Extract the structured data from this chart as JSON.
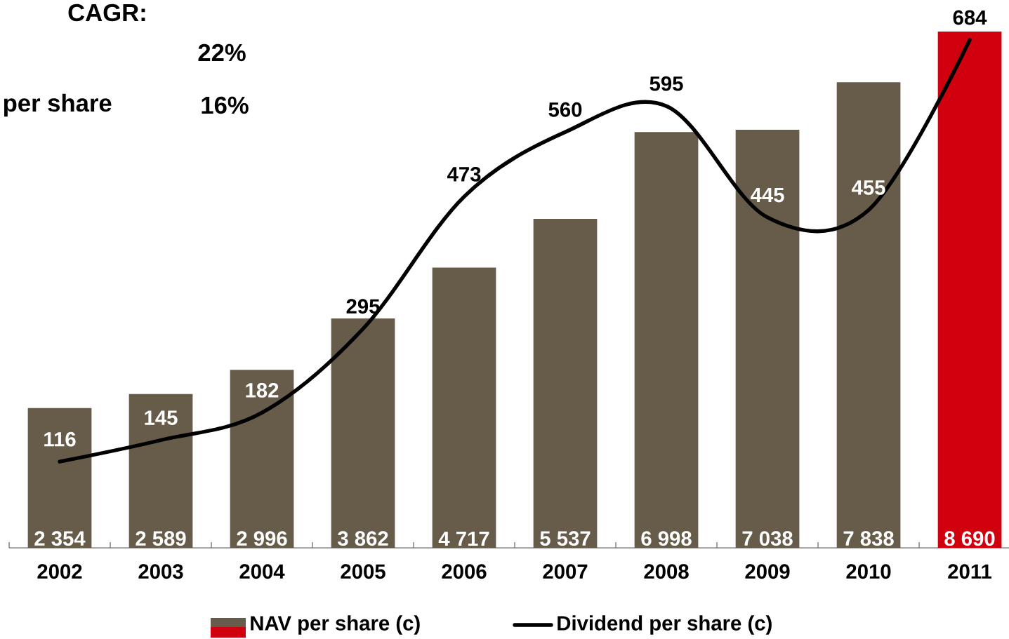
{
  "chart_data": {
    "type": "bar",
    "categories": [
      "2002",
      "2003",
      "2004",
      "2005",
      "2006",
      "2007",
      "2008",
      "2009",
      "2010",
      "2011"
    ],
    "series": [
      {
        "name": "NAV per share (c)",
        "colors": [
          "#675c4a",
          "#675c4a",
          "#675c4a",
          "#675c4a",
          "#675c4a",
          "#675c4a",
          "#675c4a",
          "#675c4a",
          "#675c4a",
          "#d0000f"
        ],
        "values": [
          2354,
          2589,
          2996,
          3862,
          4717,
          5537,
          6998,
          7038,
          7838,
          8690
        ],
        "value_labels": [
          "2 354",
          "2 589",
          "2 996",
          "3 862",
          "4 717",
          "5 537",
          "6 998",
          "7 038",
          "7 838",
          "8 690"
        ]
      },
      {
        "name": "Dividend per share (c)",
        "type": "line",
        "axis": "y2",
        "color": "#000000",
        "marker": "none",
        "values": [
          116,
          145,
          182,
          295,
          473,
          560,
          595,
          445,
          455,
          684
        ],
        "value_labels": [
          "116",
          "145",
          "182",
          "295",
          "473",
          "560",
          "595",
          "445",
          "455",
          "684"
        ]
      }
    ],
    "legend": "bottom",
    "annotations": [
      "CAGR:",
      "22%",
      "per share",
      "16%"
    ]
  }
}
